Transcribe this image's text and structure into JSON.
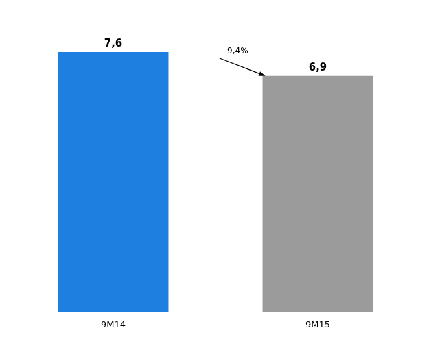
{
  "chart_data": {
    "type": "bar",
    "categories": [
      "9M14",
      "9M15"
    ],
    "values": [
      7.6,
      6.9
    ],
    "colors": [
      "#1E7FE0",
      "#9B9B9B"
    ],
    "data_labels": true,
    "value_labels": [
      "7,6",
      "6,9"
    ],
    "annotation": "- 9,4%",
    "ylim": [
      0,
      8.8
    ],
    "tick_labels": "x",
    "grid": false
  }
}
